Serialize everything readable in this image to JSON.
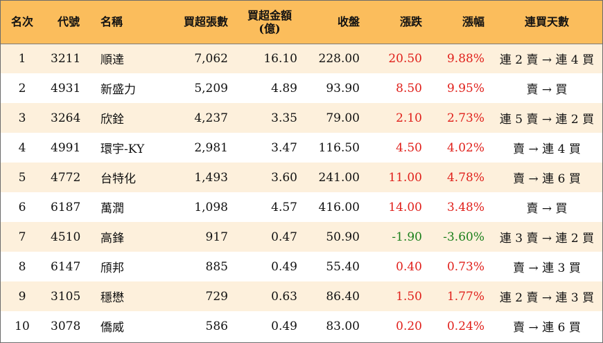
{
  "headers": {
    "rank": "名次",
    "code": "代號",
    "name": "名稱",
    "net_lots": "買超張數",
    "net_amount_line1": "買超金額",
    "net_amount_line2": "(億)",
    "close": "收盤",
    "change": "漲跌",
    "change_pct": "漲幅",
    "streak": "連買天數"
  },
  "colors": {
    "header_bg": "#fbbd5c",
    "row_alt_bg": "#fdf0dc",
    "up": "#e0201b",
    "down": "#1a7f1a"
  },
  "rows": [
    {
      "rank": "1",
      "code": "3211",
      "name": "順達",
      "net_lots": "7,062",
      "net_amount": "16.10",
      "close": "228.00",
      "change": "20.50",
      "change_pct": "9.88%",
      "direction": "up",
      "streak": "連 2 賣 → 連 4 買"
    },
    {
      "rank": "2",
      "code": "4931",
      "name": "新盛力",
      "net_lots": "5,209",
      "net_amount": "4.89",
      "close": "93.90",
      "change": "8.50",
      "change_pct": "9.95%",
      "direction": "up",
      "streak": "賣 → 買"
    },
    {
      "rank": "3",
      "code": "3264",
      "name": "欣銓",
      "net_lots": "4,237",
      "net_amount": "3.35",
      "close": "79.00",
      "change": "2.10",
      "change_pct": "2.73%",
      "direction": "up",
      "streak": "連 5 賣 → 連 2 買"
    },
    {
      "rank": "4",
      "code": "4991",
      "name": "環宇-KY",
      "net_lots": "2,981",
      "net_amount": "3.47",
      "close": "116.50",
      "change": "4.50",
      "change_pct": "4.02%",
      "direction": "up",
      "streak": "賣 → 連 4 買"
    },
    {
      "rank": "5",
      "code": "4772",
      "name": "台特化",
      "net_lots": "1,493",
      "net_amount": "3.60",
      "close": "241.00",
      "change": "11.00",
      "change_pct": "4.78%",
      "direction": "up",
      "streak": "賣 → 連 6 買"
    },
    {
      "rank": "6",
      "code": "6187",
      "name": "萬潤",
      "net_lots": "1,098",
      "net_amount": "4.57",
      "close": "416.00",
      "change": "14.00",
      "change_pct": "3.48%",
      "direction": "up",
      "streak": "賣 → 買"
    },
    {
      "rank": "7",
      "code": "4510",
      "name": "高鋒",
      "net_lots": "917",
      "net_amount": "0.47",
      "close": "50.90",
      "change": "-1.90",
      "change_pct": "-3.60%",
      "direction": "down",
      "streak": "連 3 賣 → 連 2 買"
    },
    {
      "rank": "8",
      "code": "6147",
      "name": "頎邦",
      "net_lots": "885",
      "net_amount": "0.49",
      "close": "55.40",
      "change": "0.40",
      "change_pct": "0.73%",
      "direction": "up",
      "streak": "賣 → 連 3 買"
    },
    {
      "rank": "9",
      "code": "3105",
      "name": "穩懋",
      "net_lots": "729",
      "net_amount": "0.63",
      "close": "86.40",
      "change": "1.50",
      "change_pct": "1.77%",
      "direction": "up",
      "streak": "連 2 賣 → 連 3 買"
    },
    {
      "rank": "10",
      "code": "3078",
      "name": "僑威",
      "net_lots": "586",
      "net_amount": "0.49",
      "close": "83.00",
      "change": "0.20",
      "change_pct": "0.24%",
      "direction": "up",
      "streak": "賣 → 連 6 買"
    }
  ]
}
